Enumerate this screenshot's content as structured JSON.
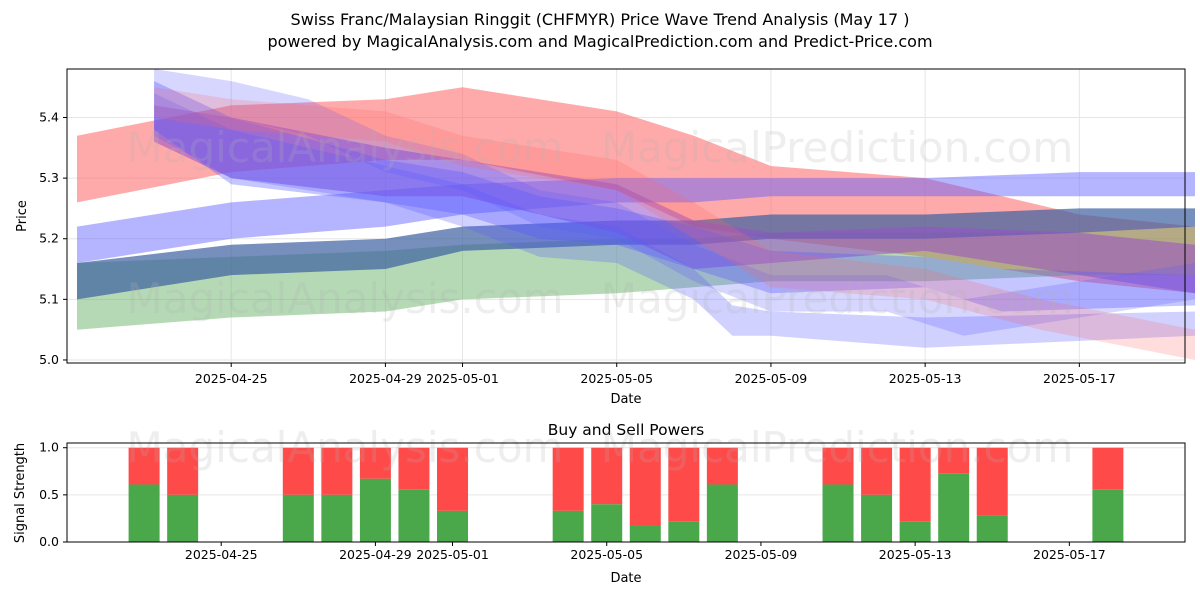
{
  "figure": {
    "title_line1": "Swiss Franc/Malaysian Ringgit (CHFMYR) Price Wave Trend Analysis (May 17 )",
    "title_line2": "powered by MagicalAnalysis.com and MagicalPrediction.com and Predict-Price.com",
    "watermarks": [
      "MagicalAnalysis.com",
      "MagicalPrediction.com"
    ]
  },
  "chart_data": [
    {
      "type": "area",
      "xlabel": "Date",
      "ylabel": "Price",
      "ylim": [
        4.995,
        5.48
      ],
      "xlim": [
        "2025-04-21",
        "2025-05-20"
      ],
      "x_ticks": [
        "2025-04-25",
        "2025-04-29",
        "2025-05-01",
        "2025-05-05",
        "2025-05-09",
        "2025-05-13",
        "2025-05-17"
      ],
      "y_ticks": [
        5.0,
        5.1,
        5.2,
        5.3,
        5.4
      ],
      "grid": true,
      "colors": {
        "red": "#ff6464",
        "green": "#5aaa5a",
        "blue": "#5a5aff",
        "purple": "#9650c8",
        "slate": "#3c5fa0"
      },
      "bands": [
        {
          "color": "red",
          "opacity": 0.55,
          "x": [
            "2025-04-21",
            "2025-04-25",
            "2025-04-29",
            "2025-05-01",
            "2025-05-05",
            "2025-05-07",
            "2025-05-09",
            "2025-05-13",
            "2025-05-17",
            "2025-05-20"
          ],
          "low": [
            5.26,
            5.31,
            5.33,
            5.33,
            5.28,
            5.22,
            5.2,
            5.17,
            5.13,
            5.11
          ],
          "high": [
            5.37,
            5.42,
            5.43,
            5.45,
            5.41,
            5.37,
            5.32,
            5.3,
            5.24,
            5.22
          ]
        },
        {
          "color": "green",
          "opacity": 0.45,
          "x": [
            "2025-04-21",
            "2025-04-25",
            "2025-04-29",
            "2025-05-01",
            "2025-05-05",
            "2025-05-07",
            "2025-05-09",
            "2025-05-13",
            "2025-05-17",
            "2025-05-20"
          ],
          "low": [
            5.05,
            5.07,
            5.08,
            5.1,
            5.11,
            5.12,
            5.13,
            5.13,
            5.14,
            5.14
          ],
          "high": [
            5.16,
            5.17,
            5.18,
            5.19,
            5.2,
            5.2,
            5.21,
            5.21,
            5.21,
            5.22
          ]
        },
        {
          "color": "slate",
          "opacity": 0.7,
          "x": [
            "2025-04-21",
            "2025-04-25",
            "2025-04-29",
            "2025-05-01",
            "2025-05-05",
            "2025-05-07",
            "2025-05-09",
            "2025-05-13",
            "2025-05-17",
            "2025-05-20"
          ],
          "low": [
            5.1,
            5.14,
            5.15,
            5.18,
            5.19,
            5.19,
            5.2,
            5.2,
            5.21,
            5.22
          ],
          "high": [
            5.16,
            5.19,
            5.2,
            5.22,
            5.23,
            5.23,
            5.24,
            5.24,
            5.25,
            5.25
          ]
        },
        {
          "color": "blue",
          "opacity": 0.45,
          "x": [
            "2025-04-21",
            "2025-04-25",
            "2025-04-29",
            "2025-05-01",
            "2025-05-05",
            "2025-05-07",
            "2025-05-09",
            "2025-05-13",
            "2025-05-17",
            "2025-05-20"
          ],
          "low": [
            5.16,
            5.2,
            5.22,
            5.24,
            5.26,
            5.26,
            5.27,
            5.27,
            5.27,
            5.27
          ],
          "high": [
            5.22,
            5.26,
            5.28,
            5.29,
            5.3,
            5.3,
            5.3,
            5.3,
            5.31,
            5.31
          ]
        },
        {
          "color": "purple",
          "opacity": 0.55,
          "x": [
            "2025-04-23",
            "2025-04-25",
            "2025-04-29",
            "2025-05-01",
            "2025-05-05",
            "2025-05-07",
            "2025-05-09",
            "2025-05-13",
            "2025-05-17",
            "2025-05-20"
          ],
          "low": [
            5.36,
            5.3,
            5.27,
            5.27,
            5.21,
            5.15,
            5.16,
            5.18,
            5.14,
            5.11
          ],
          "high": [
            5.42,
            5.4,
            5.35,
            5.33,
            5.29,
            5.23,
            5.21,
            5.22,
            5.21,
            5.19
          ]
        },
        {
          "color": "blue",
          "opacity": 0.35,
          "x": [
            "2025-04-23",
            "2025-04-25",
            "2025-04-29",
            "2025-05-01",
            "2025-05-03",
            "2025-05-05",
            "2025-05-07",
            "2025-05-09",
            "2025-05-13",
            "2025-05-15",
            "2025-05-20"
          ],
          "low": [
            5.38,
            5.29,
            5.26,
            5.24,
            5.2,
            5.19,
            5.15,
            5.11,
            5.12,
            5.08,
            5.09
          ],
          "high": [
            5.46,
            5.4,
            5.33,
            5.31,
            5.27,
            5.25,
            5.22,
            5.18,
            5.17,
            5.15,
            5.14
          ]
        },
        {
          "color": "blue",
          "opacity": 0.28,
          "x": [
            "2025-04-23",
            "2025-04-25",
            "2025-04-29",
            "2025-05-01",
            "2025-05-03",
            "2025-05-05",
            "2025-05-07",
            "2025-05-08",
            "2025-05-09",
            "2025-05-13",
            "2025-05-20"
          ],
          "low": [
            5.37,
            5.3,
            5.26,
            5.22,
            5.17,
            5.16,
            5.1,
            5.04,
            5.04,
            5.02,
            5.04
          ],
          "high": [
            5.44,
            5.38,
            5.32,
            5.29,
            5.24,
            5.22,
            5.15,
            5.09,
            5.08,
            5.07,
            5.08
          ]
        },
        {
          "color": "blue",
          "opacity": 0.25,
          "x": [
            "2025-04-23",
            "2025-04-25",
            "2025-04-27",
            "2025-04-29",
            "2025-05-01",
            "2025-05-03",
            "2025-05-05",
            "2025-05-07",
            "2025-05-09",
            "2025-05-12",
            "2025-05-14",
            "2025-05-20"
          ],
          "low": [
            5.42,
            5.4,
            5.37,
            5.31,
            5.28,
            5.22,
            5.2,
            5.13,
            5.08,
            5.08,
            5.04,
            5.1
          ],
          "high": [
            5.48,
            5.46,
            5.43,
            5.37,
            5.34,
            5.28,
            5.26,
            5.19,
            5.14,
            5.14,
            5.1,
            5.16
          ]
        },
        {
          "color": "red",
          "opacity": 0.22,
          "x": [
            "2025-04-23",
            "2025-04-25",
            "2025-04-29",
            "2025-05-01",
            "2025-05-05",
            "2025-05-07",
            "2025-05-09",
            "2025-05-13",
            "2025-05-16",
            "2025-05-20"
          ],
          "low": [
            5.4,
            5.38,
            5.36,
            5.32,
            5.28,
            5.2,
            5.12,
            5.1,
            5.05,
            5.0
          ],
          "high": [
            5.45,
            5.43,
            5.41,
            5.37,
            5.33,
            5.26,
            5.18,
            5.15,
            5.1,
            5.05
          ]
        }
      ]
    },
    {
      "type": "bar",
      "title": "Buy and Sell Powers",
      "xlabel": "Date",
      "ylabel": "Signal Strength",
      "ylim": [
        0,
        1.05
      ],
      "y_ticks": [
        0.0,
        0.5,
        1.0
      ],
      "x_ticks": [
        "2025-04-25",
        "2025-04-29",
        "2025-05-01",
        "2025-05-05",
        "2025-05-09",
        "2025-05-13",
        "2025-05-17"
      ],
      "xlim": [
        "2025-04-21",
        "2025-05-20"
      ],
      "colors": {
        "buy": "#4aa84a",
        "sell": "#ff4a4a"
      },
      "series": [
        {
          "name": "Buy",
          "color": "buy"
        },
        {
          "name": "Sell",
          "color": "sell"
        }
      ],
      "dates": [
        "2025-04-23",
        "2025-04-24",
        "2025-04-27",
        "2025-04-28",
        "2025-04-29",
        "2025-04-30",
        "2025-05-01",
        "2025-05-04",
        "2025-05-05",
        "2025-05-06",
        "2025-05-07",
        "2025-05-08",
        "2025-05-11",
        "2025-05-12",
        "2025-05-13",
        "2025-05-14",
        "2025-05-15",
        "2025-05-18"
      ],
      "buy": [
        0.61,
        0.5,
        0.5,
        0.5,
        0.67,
        0.56,
        0.33,
        0.33,
        0.4,
        0.17,
        0.22,
        0.61,
        0.61,
        0.5,
        0.22,
        0.73,
        0.28,
        0.56
      ]
    }
  ]
}
